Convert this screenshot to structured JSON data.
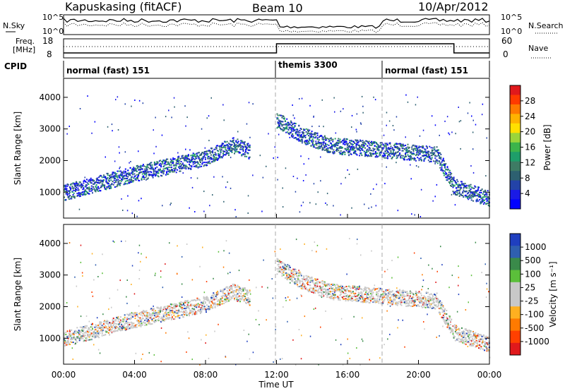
{
  "header": {
    "station": "Kapuskasing (fitACF)",
    "beam": "Beam 10",
    "date": "10/Apr/2012"
  },
  "summary_panels": {
    "nsky_label": "N.Sky",
    "nsky_ticks": [
      "10^5",
      "10^0"
    ],
    "nsearch_label": "N.Search",
    "nsearch_ticks": [
      "10^5",
      "10^0"
    ],
    "freq_label_1": "Freq.",
    "freq_label_2": "[MHz]",
    "freq_ticks": [
      "18",
      "8"
    ],
    "nave_label": "Nave",
    "nave_ticks": [
      "60",
      "0"
    ],
    "cpid_label": "CPID",
    "cpid_segments": [
      {
        "label": "normal (fast) 151",
        "start_hour": 0,
        "end_hour": 12
      },
      {
        "label": "themis 3300",
        "start_hour": 12,
        "end_hour": 18
      },
      {
        "label": "normal (fast) 151",
        "start_hour": 18,
        "end_hour": 24
      }
    ]
  },
  "panels": {
    "power": {
      "ylabel": "Slant Range [km]",
      "cbar_label": "Power [dB]",
      "cbar_ticks": [
        "28",
        "24",
        "20",
        "16",
        "12",
        "8",
        "4"
      ],
      "cbar_colors": [
        "#e0191c",
        "#ff3a00",
        "#ff7a00",
        "#ffb300",
        "#ffe000",
        "#9ad53a",
        "#3cb44b",
        "#1e9e6a",
        "#3e7b64",
        "#2d6070",
        "#2343a8",
        "#1a1ae6",
        "#0000ff"
      ]
    },
    "velocity": {
      "ylabel": "Slant Range [km]",
      "cbar_label": "Velocity [m s⁻¹]",
      "cbar_ticks": [
        "1000",
        "500",
        "100",
        "25",
        "-25",
        "-100",
        "-500",
        "-1000"
      ],
      "cbar_colors": [
        "#1f3fbf",
        "#2f5fb0",
        "#3a8a4a",
        "#5bbf3a",
        "#c8c8c8",
        "#c8c8c8",
        "#ffb020",
        "#ff7a00",
        "#ff4000",
        "#e0191c"
      ]
    }
  },
  "xaxis": {
    "label": "Time UT",
    "ticks": [
      "00:00",
      "04:00",
      "08:00",
      "12:00",
      "16:00",
      "20:00",
      "00:00"
    ]
  },
  "chart_data": [
    {
      "type": "heatmap",
      "title": "Power",
      "xlabel": "Time UT",
      "ylabel": "Slant Range [km]",
      "x_range_hours": [
        0,
        24
      ],
      "ylim": [
        180,
        4600
      ],
      "y_ticks": [
        1000,
        2000,
        3000,
        4000
      ],
      "colorbar": {
        "label": "Power [dB]",
        "range": [
          0,
          30
        ],
        "ticks": [
          4,
          8,
          12,
          16,
          20,
          24,
          28
        ]
      },
      "features": [
        {
          "name": "ground-scatter-band",
          "points": [
            [
              0,
              1000
            ],
            [
              2,
              1300
            ],
            [
              4,
              1600
            ],
            [
              6,
              1850
            ],
            [
              8,
              2100
            ],
            [
              9.5,
              2500
            ],
            [
              10.5,
              2300
            ]
          ]
        },
        {
          "name": "near-range-echo",
          "points": [
            [
              12,
              3300
            ],
            [
              13.5,
              2800
            ],
            [
              15,
              2500
            ],
            [
              17,
              2400
            ],
            [
              19,
              2300
            ],
            [
              21,
              2200
            ],
            [
              22,
              1200
            ],
            [
              24,
              800
            ]
          ]
        }
      ]
    },
    {
      "type": "heatmap",
      "title": "Velocity",
      "xlabel": "Time UT",
      "ylabel": "Slant Range [km]",
      "x_range_hours": [
        0,
        24
      ],
      "ylim": [
        180,
        4600
      ],
      "y_ticks": [
        1000,
        2000,
        3000,
        4000
      ],
      "colorbar": {
        "label": "Velocity [m s⁻¹]",
        "range": [
          -1000,
          1000
        ],
        "ticks": [
          -1000,
          -500,
          -100,
          -25,
          25,
          100,
          500,
          1000
        ]
      }
    }
  ]
}
